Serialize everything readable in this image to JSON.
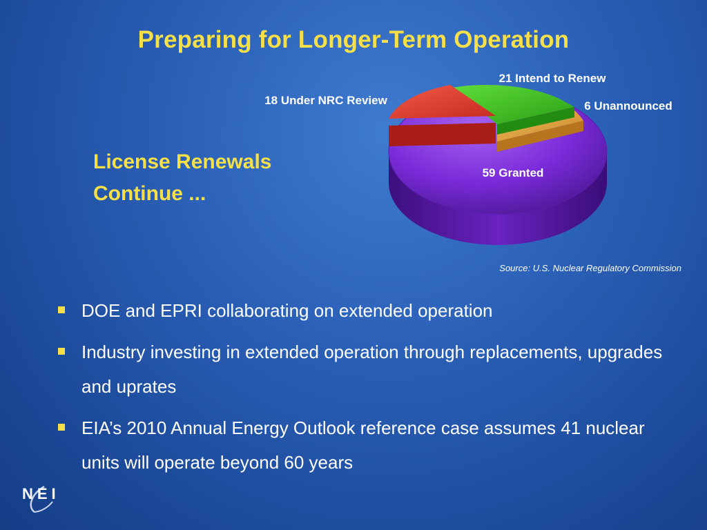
{
  "slide": {
    "title": "Preparing for Longer-Term Operation",
    "subtitle_line1": "License Renewals",
    "subtitle_line2": "Continue ...",
    "source": "Source: U.S. Nuclear Regulatory Commission",
    "bullets": [
      "DOE and EPRI collaborating on extended operation",
      "Industry investing in extended operation through replacements, upgrades and uprates",
      "EIA’s 2010 Annual Energy Outlook reference case assumes 41 nuclear units will operate beyond 60 years"
    ],
    "logo_text": "NEI"
  },
  "chart_data": {
    "type": "pie",
    "title": "",
    "slices": [
      {
        "label": "59 Granted",
        "value": 59,
        "color": "#7a2ad8"
      },
      {
        "label": "18 Under NRC Review",
        "value": 18,
        "color": "#e03a2e"
      },
      {
        "label": "21 Intend to Renew",
        "value": 21,
        "color": "#3fc424"
      },
      {
        "label": "6 Unannounced",
        "value": 6,
        "color": "#e0a23a"
      }
    ]
  }
}
